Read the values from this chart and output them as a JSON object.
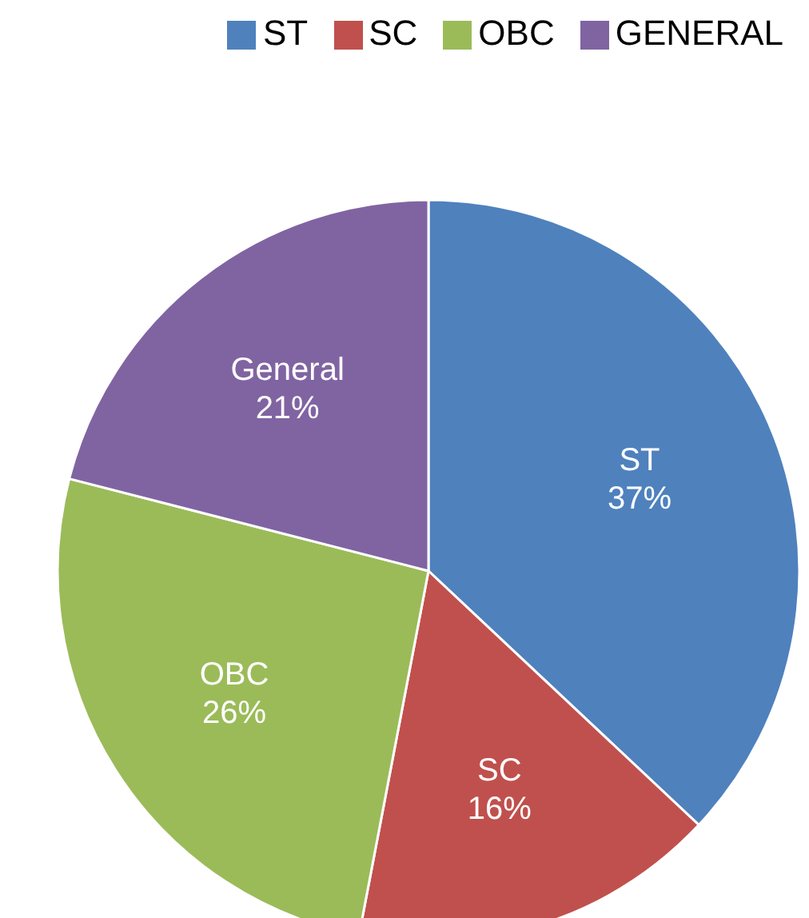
{
  "chart_data": {
    "type": "pie",
    "categories": [
      "ST",
      "SC",
      "OBC",
      "GENERAL"
    ],
    "values": [
      37,
      16,
      26,
      21
    ],
    "colors": [
      "#4f81bd",
      "#c0504d",
      "#9bbb59",
      "#8064a2"
    ],
    "value_labels": [
      "ST\n37%",
      "SC\n16%",
      "OBC\n26%",
      "General\n21%"
    ],
    "legend": "top right"
  }
}
